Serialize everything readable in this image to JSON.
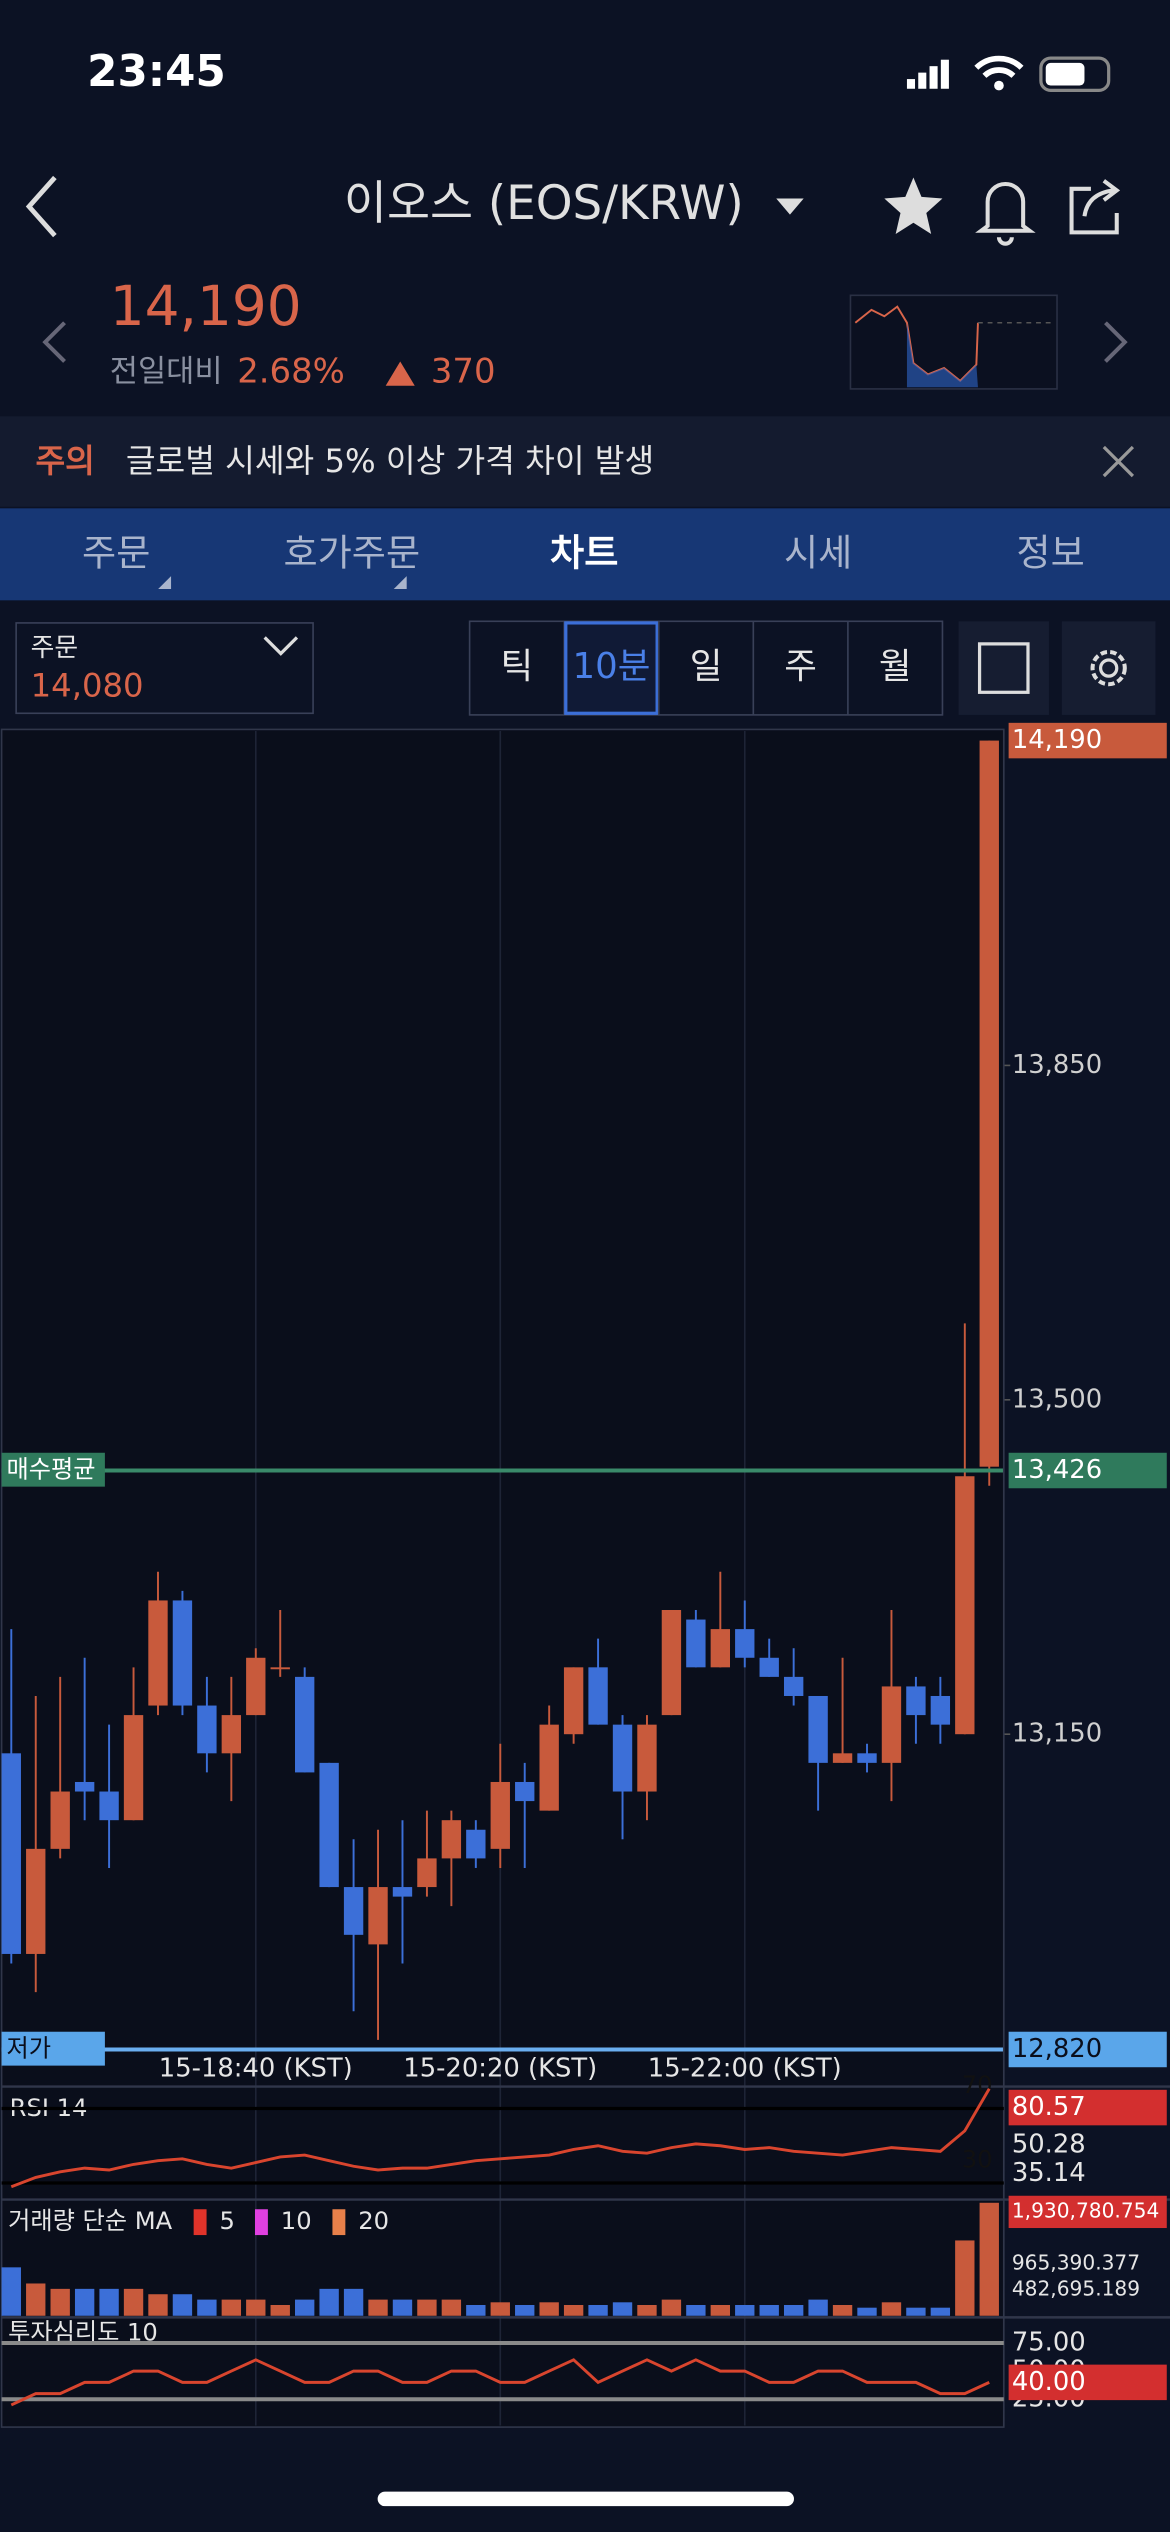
{
  "status_bar": {
    "time": "23:45"
  },
  "header": {
    "title": "이오스 (EOS/KRW)",
    "price": "14,190",
    "change_label": "전일대비",
    "change_rate": "2.68%",
    "change_amount": "370"
  },
  "notice": {
    "tag": "주의",
    "text": "글로벌 시세와 5% 이상 가격 차이 발생"
  },
  "tabs": [
    "주문",
    "호가주문",
    "차트",
    "시세",
    "정보"
  ],
  "order_box": {
    "label": "주문",
    "price": "14,080"
  },
  "periods": [
    "틱",
    "10분",
    "일",
    "주",
    "월"
  ],
  "chart_data": {
    "type": "candlestick",
    "categories": [
      null,
      null,
      null,
      null,
      null,
      null,
      null,
      null,
      null,
      null,
      "15-18:40 (KST)",
      null,
      null,
      null,
      null,
      null,
      null,
      null,
      null,
      null,
      "15-20:20 (KST)",
      null,
      null,
      null,
      null,
      null,
      null,
      null,
      null,
      null,
      "15-22:00 (KST)",
      null,
      null,
      null,
      null,
      null,
      null,
      null,
      null,
      null,
      null
    ],
    "open": [
      13130,
      12920,
      13030,
      13100,
      13090,
      13060,
      13180,
      13290,
      13180,
      13130,
      13170,
      13220,
      13210,
      13120,
      12990,
      12930,
      12990,
      12990,
      13020,
      13050,
      13030,
      13100,
      13070,
      13150,
      13220,
      13160,
      13090,
      13170,
      13270,
      13220,
      13260,
      13230,
      13210,
      13190,
      13120,
      13130,
      13120,
      13200,
      13190,
      13150,
      13430
    ],
    "high": [
      13260,
      13190,
      13210,
      13230,
      13160,
      13220,
      13320,
      13300,
      13210,
      13210,
      13240,
      13280,
      13220,
      13120,
      13040,
      13050,
      13060,
      13070,
      13070,
      13060,
      13140,
      13120,
      13180,
      13220,
      13250,
      13170,
      13170,
      13280,
      13280,
      13320,
      13290,
      13250,
      13240,
      13190,
      13230,
      13140,
      13280,
      13210,
      13210,
      13580,
      14190
    ],
    "low": [
      12910,
      12880,
      13020,
      13060,
      13010,
      13060,
      13170,
      13170,
      13110,
      13080,
      13170,
      13210,
      13110,
      12990,
      12860,
      12830,
      12910,
      12980,
      12970,
      13010,
      13010,
      13010,
      13070,
      13140,
      13160,
      13040,
      13060,
      13170,
      13220,
      13220,
      13220,
      13210,
      13180,
      13070,
      13120,
      13110,
      13080,
      13140,
      13140,
      13150,
      13410
    ],
    "close": [
      12920,
      13030,
      13090,
      13090,
      13060,
      13170,
      13290,
      13180,
      13130,
      13170,
      13230,
      13220,
      13110,
      12990,
      12940,
      12990,
      12980,
      13020,
      13060,
      13020,
      13100,
      13080,
      13160,
      13220,
      13160,
      13090,
      13160,
      13280,
      13220,
      13260,
      13230,
      13210,
      13190,
      13120,
      13130,
      13120,
      13200,
      13170,
      13160,
      13420,
      14190
    ],
    "up_color": "#c85a3c",
    "down_color": "#3c6fd8",
    "ylim": [
      12820,
      14200
    ],
    "yticks": [
      {
        "value": 13850,
        "label": "13,850"
      },
      {
        "value": 13500,
        "label": "13,500"
      },
      {
        "value": 13150,
        "label": "13,150"
      }
    ],
    "current_price": {
      "value": 14190,
      "label": "14,190"
    },
    "average_buy": {
      "name": "매수평균",
      "value": 13426,
      "label": "13,426"
    },
    "low_price": {
      "name": "저가",
      "value": 12820,
      "label": "12,820"
    },
    "grid": true,
    "rsi": {
      "title": "RSI 14",
      "values": [
        28,
        33,
        36,
        38,
        37,
        40,
        42,
        43,
        40,
        38,
        41,
        44,
        45,
        42,
        39,
        37,
        38,
        38,
        40,
        42,
        43,
        44,
        45,
        48,
        50,
        47,
        46,
        49,
        51,
        50,
        48,
        49,
        47,
        46,
        45,
        47,
        49,
        48,
        47,
        58,
        80.57
      ],
      "color": "#d9452e",
      "ylim": [
        22,
        80
      ],
      "yticks": [
        70,
        30
      ],
      "last_values": [
        80.57,
        50.28,
        35.14
      ]
    },
    "volume": {
      "title": "거래량 단순 MA",
      "ma_legend": [
        {
          "name": "5",
          "color": "#e0332a"
        },
        {
          "name": "10",
          "color": "#e040e0"
        },
        {
          "name": "20",
          "color": "#e8804a"
        }
      ],
      "values": [
        900000,
        600000,
        500000,
        500000,
        500000,
        500000,
        400000,
        400000,
        300000,
        300000,
        300000,
        200000,
        300000,
        500000,
        500000,
        300000,
        300000,
        300000,
        300000,
        200000,
        250000,
        200000,
        250000,
        200000,
        200000,
        250000,
        200000,
        300000,
        200000,
        200000,
        200000,
        200000,
        200000,
        300000,
        200000,
        150000,
        250000,
        150000,
        150000,
        1400000,
        2100000
      ],
      "ylim": [
        0,
        2100000
      ],
      "yticks": [
        {
          "value": 1930780.754,
          "label": "1,930,780.754"
        },
        {
          "value": 965390.377,
          "label": "965,390.377"
        },
        {
          "value": 482695.189,
          "label": "482,695.189"
        }
      ]
    },
    "sentiment": {
      "title": "투자심리도 10",
      "values": [
        20,
        30,
        30,
        40,
        40,
        50,
        50,
        40,
        40,
        50,
        60,
        50,
        40,
        40,
        50,
        50,
        40,
        40,
        50,
        50,
        40,
        40,
        50,
        60,
        40,
        50,
        60,
        50,
        60,
        50,
        50,
        40,
        40,
        50,
        50,
        40,
        40,
        40,
        30,
        30,
        40
      ],
      "color": "#d9452e",
      "ylim": [
        6,
        92
      ],
      "yticks": [
        {
          "value": 75,
          "label": "75.00"
        },
        {
          "value": 50,
          "label": "50.00"
        },
        {
          "value": 25,
          "label": "25.00"
        }
      ],
      "current": {
        "value": 40,
        "label": "40.00"
      }
    }
  }
}
